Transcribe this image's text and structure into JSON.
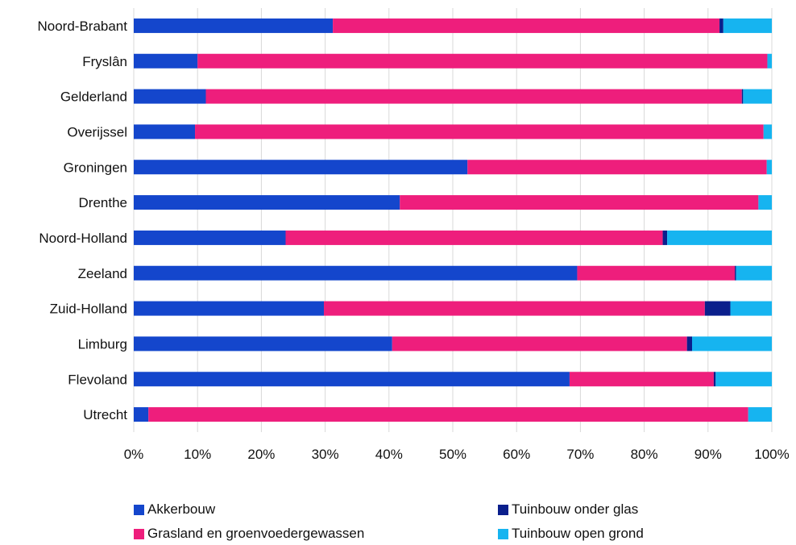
{
  "chart_data": {
    "type": "bar",
    "orientation": "horizontal",
    "stacked": "percent",
    "categories": [
      "Noord-Brabant",
      "Fryslân",
      "Gelderland",
      "Overijssel",
      "Groningen",
      "Drenthe",
      "Noord-Holland",
      "Zeeland",
      "Zuid-Holland",
      "Limburg",
      "Flevoland",
      "Utrecht"
    ],
    "series": [
      {
        "name": "Akkerbouw",
        "color": "#1446cc",
        "values": [
          31.2,
          10.0,
          11.3,
          9.6,
          52.3,
          41.7,
          23.8,
          69.5,
          29.8,
          40.5,
          68.3,
          2.3
        ]
      },
      {
        "name": "Grasland en groenvoedergewassen",
        "color": "#ee1e7c",
        "values": [
          60.6,
          89.3,
          84.0,
          89.1,
          46.9,
          56.2,
          59.1,
          24.7,
          59.7,
          46.2,
          22.6,
          94.0
        ]
      },
      {
        "name": "Tuinbouw onder glas",
        "color": "#0a1f8c",
        "values": [
          0.6,
          0.0,
          0.2,
          0.0,
          0.0,
          0.0,
          0.7,
          0.2,
          4.0,
          0.8,
          0.3,
          0.0
        ]
      },
      {
        "name": "Tuinbouw open grond",
        "color": "#16b4f0",
        "values": [
          7.6,
          0.7,
          4.5,
          1.3,
          0.8,
          2.1,
          16.4,
          5.6,
          6.5,
          12.5,
          8.8,
          3.7
        ]
      }
    ],
    "xlim": [
      0,
      100
    ],
    "x_ticks": [
      "0%",
      "10%",
      "20%",
      "30%",
      "40%",
      "50%",
      "60%",
      "70%",
      "80%",
      "90%",
      "100%"
    ],
    "grid": "vertical",
    "legend_position": "bottom"
  }
}
